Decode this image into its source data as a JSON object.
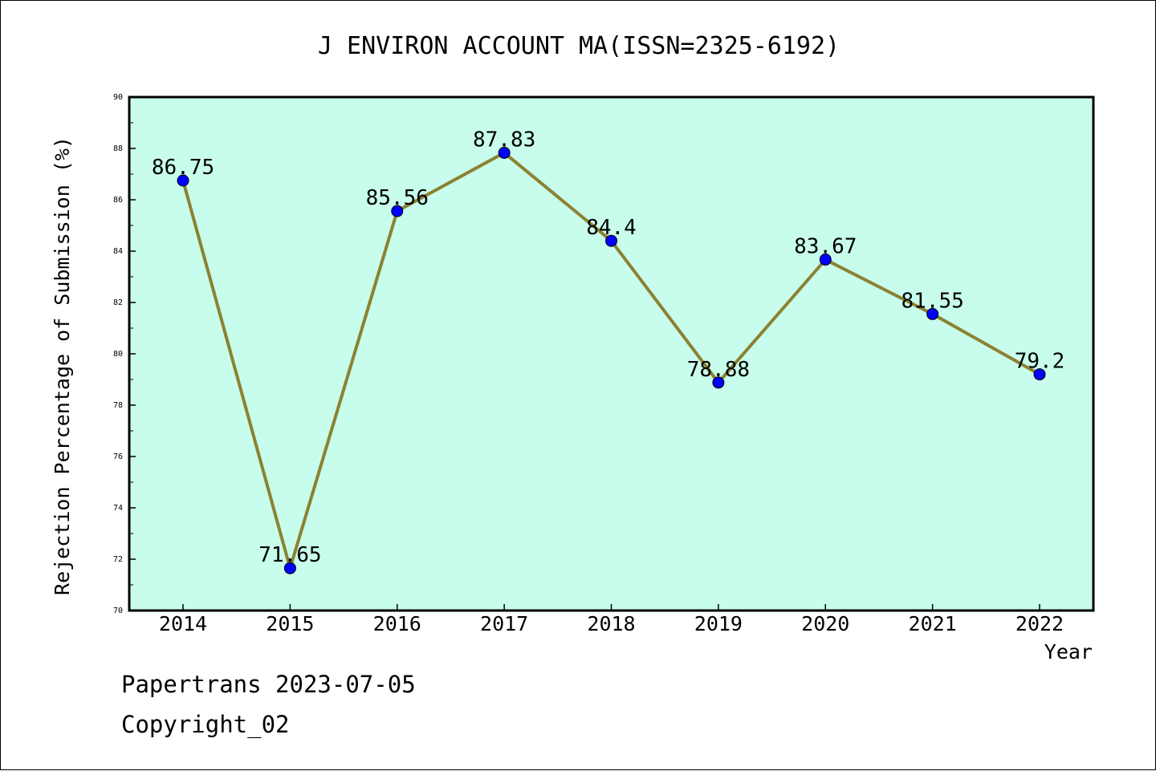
{
  "chart_data": {
    "type": "line",
    "title": "J ENVIRON ACCOUNT MA(ISSN=2325-6192)",
    "xlabel": "Year",
    "ylabel": "Rejection Percentage of Submission (%)",
    "categories": [
      "2014",
      "2015",
      "2016",
      "2017",
      "2018",
      "2019",
      "2020",
      "2021",
      "2022"
    ],
    "series": [
      {
        "values": [
          86.75,
          71.65,
          85.56,
          87.83,
          84.4,
          78.88,
          83.67,
          81.55,
          79.2
        ],
        "labels": [
          "86.75",
          "71.65",
          "85.56",
          "87.83",
          "84.4",
          "78.88",
          "83.67",
          "81.55",
          "79.2"
        ]
      }
    ],
    "ylim": [
      70,
      90
    ],
    "yticks": [
      "70",
      "72",
      "74",
      "76",
      "78",
      "80",
      "82",
      "84",
      "86",
      "88",
      "90"
    ],
    "grid": false,
    "colors": {
      "plot_background": "#c8fcec",
      "line": "#8c8232",
      "marker": "#0000ff"
    }
  },
  "footer": {
    "line1": "Papertrans 2023-07-05",
    "line2": "Copyright_02"
  }
}
